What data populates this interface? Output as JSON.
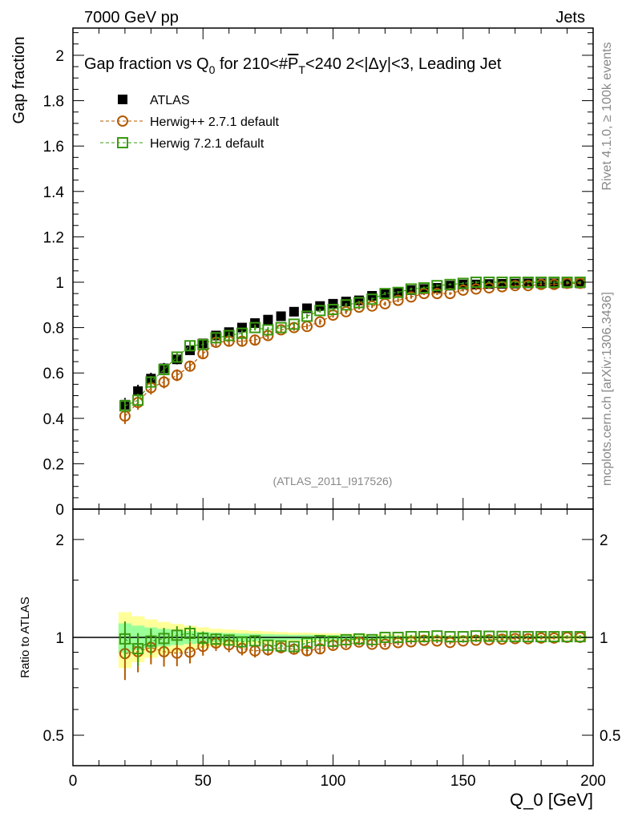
{
  "header": {
    "left": "7000 GeV pp",
    "right": "Jets"
  },
  "side_labels": {
    "top": "Rivet 4.1.0, ≥ 100k events",
    "bottom": "mcplots.cern.ch [arXiv:1306.3436]"
  },
  "watermark": "(ATLAS_2011_I917526)",
  "chart_data": [
    {
      "type": "scatter",
      "title": "Gap fraction vs Q_0 for 210<#P_T<240  2<|Δy|<3, Leading Jet",
      "title_parts": {
        "a": "Gap fraction vs Q",
        "sub0": "0",
        "b": " for 210<#",
        "p": "P",
        "sub1": "T",
        "c": "<240  2<|Δy|<3, Leading Jet"
      },
      "ylabel": "Gap fraction",
      "xlim": [
        0,
        200
      ],
      "ylim": [
        0,
        2.12
      ],
      "yticks": [
        "0",
        "0.2",
        "0.4",
        "0.6",
        "0.8",
        "1",
        "1.2",
        "1.4",
        "1.6",
        "1.8",
        "2"
      ],
      "x": [
        20,
        25,
        30,
        35,
        40,
        45,
        50,
        55,
        60,
        65,
        70,
        75,
        80,
        85,
        90,
        95,
        100,
        105,
        110,
        115,
        120,
        125,
        130,
        135,
        140,
        145,
        150,
        155,
        160,
        165,
        170,
        175,
        180,
        185,
        190,
        195
      ],
      "series": [
        {
          "name": "ATLAS",
          "color": "#000000",
          "marker": "filled-square",
          "values": [
            0.46,
            0.52,
            0.575,
            0.62,
            0.66,
            0.7,
            0.73,
            0.765,
            0.78,
            0.8,
            0.82,
            0.835,
            0.85,
            0.87,
            0.885,
            0.895,
            0.905,
            0.915,
            0.92,
            0.94,
            0.95,
            0.955,
            0.965,
            0.97,
            0.975,
            0.985,
            0.99,
            0.99,
            0.992,
            0.993,
            0.994,
            0.995,
            0.995,
            0.995,
            0.995,
            0.995
          ],
          "errors": [
            0.03,
            0.028,
            0.026,
            0.024,
            0.022,
            0.02,
            0.018,
            0.016,
            0.015,
            0.014,
            0.013,
            0.012,
            0.011,
            0.01,
            0.01,
            0.009,
            0.009,
            0.008,
            0.008,
            0.007,
            0.007,
            0.006,
            0.006,
            0.006,
            0.005,
            0.005,
            0.005,
            0.005,
            0.005,
            0.005,
            0.005,
            0.005,
            0.005,
            0.005,
            0.005,
            0.005
          ]
        },
        {
          "name": "Herwig++ 2.7.1 default",
          "color": "#b35900",
          "marker": "open-circle",
          "values": [
            0.41,
            0.47,
            0.535,
            0.56,
            0.59,
            0.63,
            0.685,
            0.735,
            0.74,
            0.74,
            0.745,
            0.765,
            0.79,
            0.8,
            0.805,
            0.825,
            0.855,
            0.87,
            0.89,
            0.895,
            0.905,
            0.92,
            0.935,
            0.95,
            0.95,
            0.95,
            0.965,
            0.97,
            0.975,
            0.98,
            0.985,
            0.985,
            0.99,
            0.99,
            0.995,
            0.995
          ],
          "errors": [
            0.035,
            0.032,
            0.03,
            0.028,
            0.026,
            0.024,
            0.022,
            0.02,
            0.019,
            0.018,
            0.017,
            0.016,
            0.015,
            0.014,
            0.013,
            0.012,
            0.011,
            0.01,
            0.01,
            0.009,
            0.009,
            0.008,
            0.008,
            0.007,
            0.007,
            0.006,
            0.006,
            0.006,
            0.005,
            0.005,
            0.005,
            0.005,
            0.005,
            0.005,
            0.005,
            0.005
          ]
        },
        {
          "name": "Herwig 7.2.1 default",
          "color": "#3a9a10",
          "marker": "open-square",
          "values": [
            0.455,
            0.48,
            0.56,
            0.615,
            0.67,
            0.72,
            0.725,
            0.755,
            0.765,
            0.775,
            0.8,
            0.79,
            0.8,
            0.815,
            0.85,
            0.875,
            0.88,
            0.9,
            0.91,
            0.925,
            0.95,
            0.955,
            0.97,
            0.975,
            0.985,
            0.99,
            0.995,
            1.0,
            1.0,
            1.0,
            1.0,
            1.0,
            1.0,
            1.0,
            1.0,
            1.0
          ],
          "errors": [
            0.03,
            0.028,
            0.026,
            0.024,
            0.022,
            0.02,
            0.018,
            0.016,
            0.015,
            0.014,
            0.013,
            0.012,
            0.011,
            0.01,
            0.01,
            0.009,
            0.009,
            0.008,
            0.008,
            0.007,
            0.007,
            0.006,
            0.006,
            0.006,
            0.005,
            0.005,
            0.005,
            0.005,
            0.005,
            0.005,
            0.005,
            0.005,
            0.005,
            0.005,
            0.005,
            0.005
          ]
        }
      ],
      "legend": "top-left"
    },
    {
      "type": "scatter",
      "ylabel": "Ratio to ATLAS",
      "xlabel": "Q_0 [GeV]",
      "xlabel_parts": {
        "a": "Q",
        "sub": "0",
        "b": " [GeV]"
      },
      "xticks": [
        "0",
        "50",
        "100",
        "150",
        "200"
      ],
      "yticks": [
        "0.5",
        "1",
        "2"
      ],
      "yscale": "log",
      "ylim": [
        0.403,
        2.48
      ],
      "band_colors": {
        "outer": "#ffff99",
        "inner": "#99ff99"
      }
    }
  ]
}
